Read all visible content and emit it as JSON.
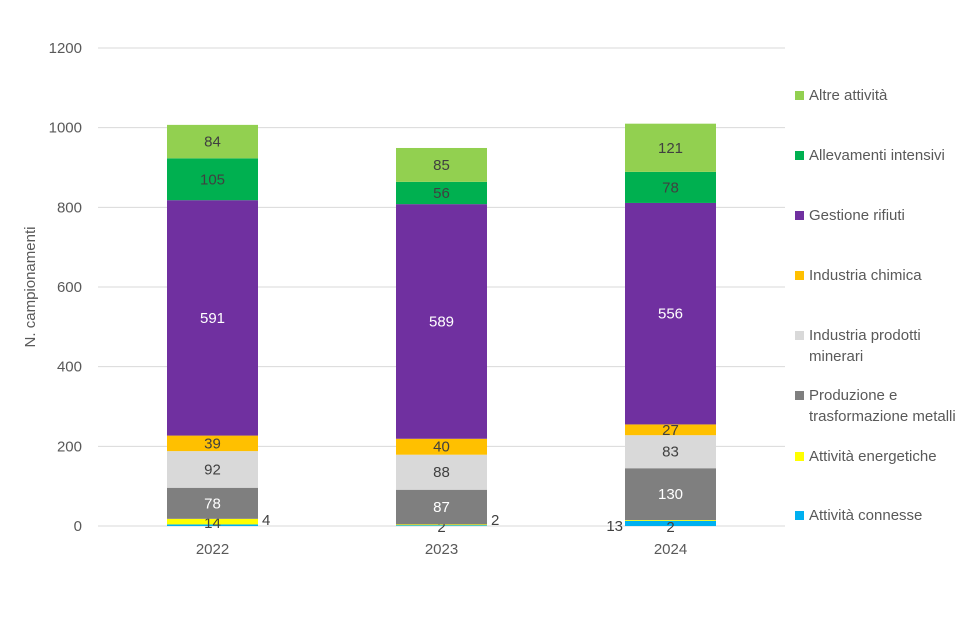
{
  "chart_data": {
    "type": "bar",
    "stacked": true,
    "title": "",
    "xlabel": "",
    "ylabel": "N. campionamenti",
    "ylim": [
      0,
      1200
    ],
    "yticks": [
      0,
      200,
      400,
      600,
      800,
      1000,
      1200
    ],
    "grid": true,
    "legend_position": "right",
    "categories": [
      "2022",
      "2023",
      "2024"
    ],
    "series": [
      {
        "name": "Attività connesse",
        "color": "#00B0F0",
        "label_color": "#404040",
        "values": [
          4,
          2,
          13
        ]
      },
      {
        "name": "Attività energetiche",
        "color": "#FFFF00",
        "label_color": "#404040",
        "values": [
          14,
          2,
          2
        ]
      },
      {
        "name": "Produzione e trasformazione metalli",
        "color": "#7F7F7F",
        "label_color": "#FFFFFF",
        "values": [
          78,
          87,
          130
        ]
      },
      {
        "name": "Industria prodotti minerari",
        "color": "#D9D9D9",
        "label_color": "#404040",
        "values": [
          92,
          88,
          83
        ]
      },
      {
        "name": "Industria chimica",
        "color": "#FFC000",
        "label_color": "#404040",
        "values": [
          39,
          40,
          27
        ]
      },
      {
        "name": "Gestione rifiuti",
        "color": "#7030A0",
        "label_color": "#FFFFFF",
        "values": [
          591,
          589,
          556
        ]
      },
      {
        "name": "Allevamenti intensivi",
        "color": "#00B050",
        "label_color": "#404040",
        "values": [
          105,
          56,
          78
        ]
      },
      {
        "name": "Altre attività",
        "color": "#92D050",
        "label_color": "#404040",
        "values": [
          84,
          85,
          121
        ]
      }
    ]
  },
  "legend": {
    "items": [
      {
        "label": "Altre attività",
        "color": "#92D050"
      },
      {
        "label": "Allevamenti intensivi",
        "color": "#00B050"
      },
      {
        "label": "Gestione rifiuti",
        "color": "#7030A0"
      },
      {
        "label": "Industria chimica",
        "color": "#FFC000"
      },
      {
        "label": "Industria prodotti minerari",
        "color": "#D9D9D9"
      },
      {
        "label": "Produzione e trasformazione metalli",
        "color": "#7F7F7F"
      },
      {
        "label": "Attività energetiche",
        "color": "#FFFF00"
      },
      {
        "label": "Attività connesse",
        "color": "#00B0F0"
      }
    ]
  }
}
